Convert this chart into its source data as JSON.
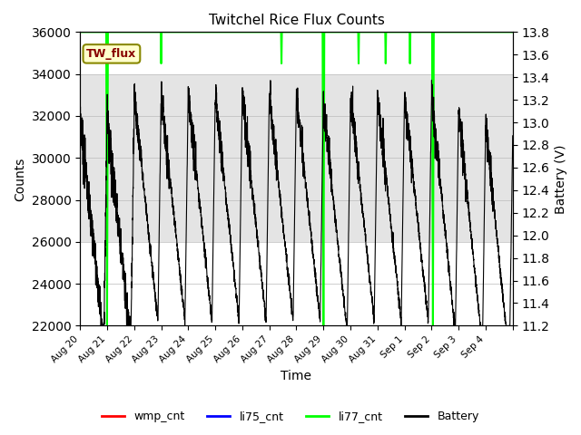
{
  "title": "Twitchel Rice Flux Counts",
  "xlabel": "Time",
  "ylabel_left": "Counts",
  "ylabel_right": "Battery (V)",
  "ylim_left": [
    22000,
    36000
  ],
  "ylim_right": [
    11.2,
    13.8
  ],
  "yticks_left": [
    22000,
    24000,
    26000,
    28000,
    30000,
    32000,
    34000,
    36000
  ],
  "yticks_right": [
    11.2,
    11.4,
    11.6,
    11.8,
    12.0,
    12.2,
    12.4,
    12.6,
    12.8,
    13.0,
    13.2,
    13.4,
    13.6,
    13.8
  ],
  "xtick_positions": [
    0,
    1,
    2,
    3,
    4,
    5,
    6,
    7,
    8,
    9,
    10,
    11,
    12,
    13,
    14,
    15,
    16
  ],
  "xtick_labels": [
    "Aug 20",
    "Aug 21",
    "Aug 22",
    "Aug 23",
    "Aug 24",
    "Aug 25",
    "Aug 26",
    "Aug 27",
    "Aug 28",
    "Aug 29",
    "Aug 30",
    "Aug 31",
    "Sep 1",
    "Sep 2",
    "Sep 3",
    "Sep 4",
    ""
  ],
  "li77_color": "#00ff00",
  "battery_color": "#000000",
  "wmp_color": "#ff0000",
  "li75_color": "#0000ff",
  "annotation_box_facecolor": "#ffffcc",
  "annotation_box_edgecolor": "#888800",
  "annotation_text": "TW_flux",
  "annotation_text_color": "#880000",
  "shaded_region_color": "#d3d3d3",
  "shaded_ymin": 26000,
  "shaded_ymax": 34000,
  "background_color": "#ffffff",
  "grid_color": "#bbbbbb",
  "xlim": [
    0,
    16
  ]
}
